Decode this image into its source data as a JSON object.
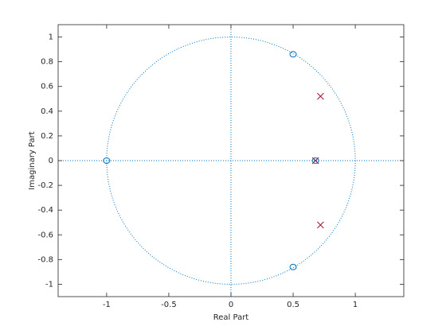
{
  "chart_data": {
    "type": "scatter",
    "xlabel": "Real Part",
    "ylabel": "Imaginary Part",
    "xlim": [
      -1.39,
      1.39
    ],
    "ylim": [
      -1.1,
      1.1
    ],
    "xticks": [
      -1,
      -0.5,
      0,
      0.5,
      1
    ],
    "yticks": [
      -1,
      -0.8,
      -0.6,
      -0.4,
      -0.2,
      0,
      0.2,
      0.4,
      0.6,
      0.8,
      1
    ],
    "unit_circle": true,
    "series": [
      {
        "marker": "o",
        "color": "#0072bd",
        "x": [
          -1,
          0.5,
          0.5,
          0.68
        ],
        "y": [
          0,
          0.86,
          -0.86,
          0
        ]
      },
      {
        "marker": "x",
        "color": "#a2142f",
        "x": [
          0.72,
          0.72,
          0.68
        ],
        "y": [
          0.52,
          -0.52,
          0
        ]
      }
    ]
  }
}
